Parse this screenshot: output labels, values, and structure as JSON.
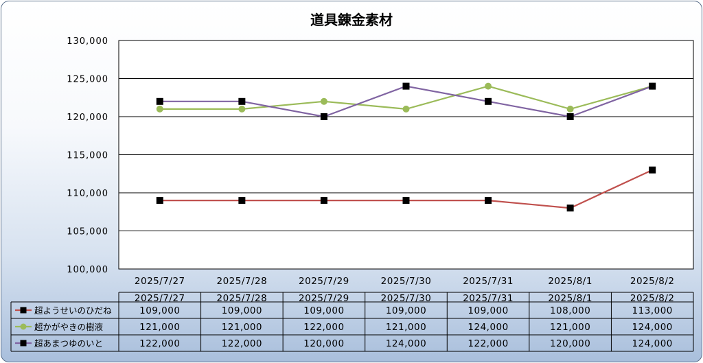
{
  "chart_data": {
    "type": "line",
    "title": "道具錬金素材",
    "xlabel": "",
    "ylabel": "",
    "categories": [
      "2025/7/27",
      "2025/7/28",
      "2025/7/29",
      "2025/7/30",
      "2025/7/31",
      "2025/8/1",
      "2025/8/2"
    ],
    "ylim": [
      100000,
      130000
    ],
    "yticks": [
      100000,
      105000,
      110000,
      115000,
      120000,
      125000,
      130000
    ],
    "ytick_labels": [
      "100,000",
      "105,000",
      "110,000",
      "115,000",
      "120,000",
      "125,000",
      "130,000"
    ],
    "grid": "horizontal",
    "legend": "data-table",
    "series": [
      {
        "name": "超ようせいのひだね",
        "values": [
          109000,
          109000,
          109000,
          109000,
          109000,
          108000,
          113000
        ],
        "value_labels": [
          "109,000",
          "109,000",
          "109,000",
          "109,000",
          "109,000",
          "108,000",
          "113,000"
        ],
        "line_color": "#c0504d",
        "marker": "square",
        "marker_color": "#000000"
      },
      {
        "name": "超かがやきの樹液",
        "values": [
          121000,
          121000,
          122000,
          121000,
          124000,
          121000,
          124000
        ],
        "value_labels": [
          "121,000",
          "121,000",
          "122,000",
          "121,000",
          "124,000",
          "121,000",
          "124,000"
        ],
        "line_color": "#9bbb59",
        "marker": "circle",
        "marker_color": "#9bbb59"
      },
      {
        "name": "超あまつゆのいと",
        "values": [
          122000,
          122000,
          120000,
          124000,
          122000,
          120000,
          124000
        ],
        "value_labels": [
          "122,000",
          "122,000",
          "120,000",
          "124,000",
          "122,000",
          "120,000",
          "124,000"
        ],
        "line_color": "#8064a2",
        "marker": "square",
        "marker_color": "#000000"
      }
    ]
  }
}
